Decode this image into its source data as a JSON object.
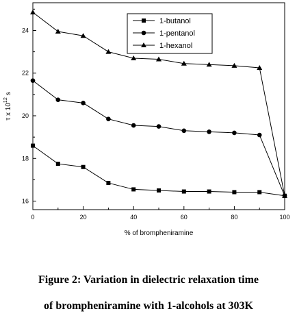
{
  "chart_data": {
    "type": "line",
    "title": "",
    "xlabel": "% of brompheniramine",
    "ylabel": "τ x 10",
    "ylabel_exponent": "12",
    "ylabel_unit": "s",
    "xlim": [
      0,
      100
    ],
    "ylim": [
      15.6,
      25.3
    ],
    "x_ticks": [
      "0",
      "20",
      "40",
      "60",
      "80",
      "100"
    ],
    "y_ticks": [
      "16",
      "18",
      "20",
      "22",
      "24"
    ],
    "x": [
      0,
      10,
      20,
      30,
      40,
      50,
      60,
      70,
      80,
      90,
      100
    ],
    "series": [
      {
        "name": "1-butanol",
        "marker": "square",
        "values": [
          18.6,
          17.75,
          17.6,
          16.85,
          16.55,
          16.5,
          16.45,
          16.45,
          16.42,
          16.42,
          16.25
        ]
      },
      {
        "name": "1-pentanol",
        "marker": "circle",
        "values": [
          21.65,
          20.75,
          20.6,
          19.85,
          19.55,
          19.5,
          19.3,
          19.25,
          19.2,
          19.1,
          16.25
        ]
      },
      {
        "name": "1-hexanol",
        "marker": "triangle",
        "values": [
          24.85,
          23.95,
          23.75,
          23.0,
          22.7,
          22.65,
          22.45,
          22.4,
          22.35,
          22.25,
          16.25
        ]
      }
    ],
    "legend_position": "top-right",
    "grid": false
  },
  "caption": {
    "line1": "Figure 2: Variation in dielectric relaxation time",
    "line2": "of brompheniramine with 1-alcohols at 303K"
  }
}
